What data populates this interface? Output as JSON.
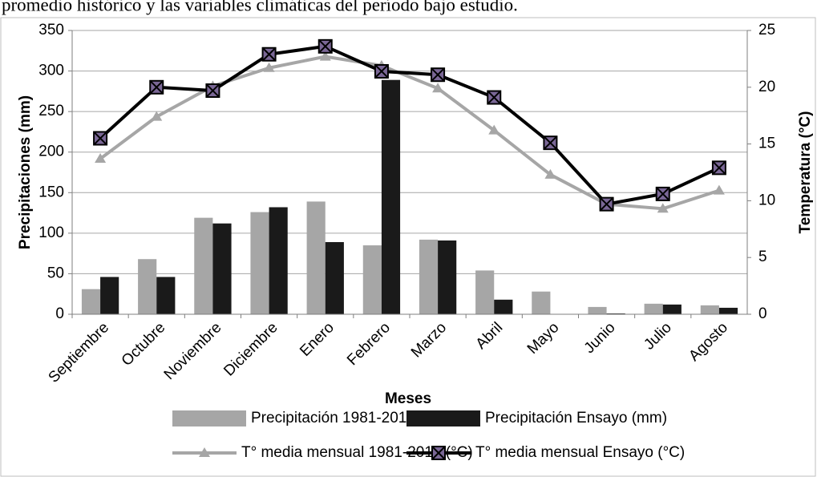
{
  "caption": "promedio histórico y las variables climáticas del período bajo estudio.",
  "chart_data": {
    "type": "combo",
    "x_label": "Meses",
    "y_label": "Precipitaciones (mm)",
    "y2_label": "Temperatura (°C)",
    "categories": [
      "Septiembre",
      "Octubre",
      "Noviembre",
      "Diciembre",
      "Enero",
      "Febrero",
      "Marzo",
      "Abril",
      "Mayo",
      "Junio",
      "Julio",
      "Agosto"
    ],
    "series": [
      {
        "name": "Precipitación 1981-2010 (mm)",
        "type": "bar",
        "color": "#a6a6a6",
        "values": [
          31,
          68,
          119,
          126,
          139,
          85,
          92,
          54,
          28,
          9,
          13,
          11
        ]
      },
      {
        "name": "Precipitación Ensayo (mm)",
        "type": "bar",
        "color": "#1a1a1a",
        "values": [
          46,
          46,
          112,
          132,
          89,
          289,
          91,
          18,
          0,
          1,
          12,
          8
        ]
      },
      {
        "name": "T° media mensual 1981-2010 (°C)",
        "type": "line",
        "axis": "y2",
        "marker": "triangle",
        "color": "#a6a6a6",
        "values": [
          13.7,
          17.4,
          20.1,
          21.7,
          22.7,
          21.9,
          19.9,
          16.2,
          12.3,
          9.7,
          9.3,
          10.9
        ]
      },
      {
        "name": "T° media mensual Ensayo (°C)",
        "type": "line",
        "axis": "y2",
        "marker": "square-x",
        "color": "#000000",
        "values": [
          15.5,
          20.0,
          19.7,
          22.9,
          23.6,
          21.4,
          21.1,
          19.1,
          15.1,
          9.7,
          10.6,
          12.9
        ]
      }
    ],
    "ylim": [
      0,
      350
    ],
    "yticks": [
      0,
      50,
      100,
      150,
      200,
      250,
      300,
      350
    ],
    "y2lim": [
      0,
      25
    ],
    "y2ticks": [
      0,
      5,
      10,
      15,
      20,
      25
    ],
    "grid": true,
    "legend": "bottom"
  }
}
